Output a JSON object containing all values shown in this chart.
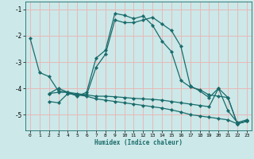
{
  "xlabel": "Humidex (Indice chaleur)",
  "xlim": [
    -0.5,
    23.5
  ],
  "ylim": [
    -5.6,
    -0.7
  ],
  "yticks": [
    -5,
    -4,
    -3,
    -2,
    -1
  ],
  "xticks": [
    0,
    1,
    2,
    3,
    4,
    5,
    6,
    7,
    8,
    9,
    10,
    11,
    12,
    13,
    14,
    15,
    16,
    17,
    18,
    19,
    20,
    21,
    22,
    23
  ],
  "bg_color": "#cce8e8",
  "line_color": "#1a6b6b",
  "grid_color": "#e8b8b8",
  "series": [
    {
      "x": [
        0,
        1,
        2,
        3,
        4,
        5,
        6,
        7,
        8,
        9,
        10,
        11,
        12,
        13,
        14,
        15,
        16,
        17,
        18,
        19,
        20,
        21,
        22,
        23
      ],
      "y": [
        -2.1,
        -3.4,
        -3.55,
        -4.1,
        -4.15,
        -4.3,
        -4.15,
        -2.85,
        -2.55,
        -1.15,
        -1.22,
        -1.35,
        -1.25,
        -1.6,
        -2.2,
        -2.6,
        -3.7,
        -3.95,
        -4.05,
        -4.25,
        -4.3,
        -4.35,
        -5.35,
        -5.25
      ]
    },
    {
      "x": [
        2,
        3,
        4,
        5,
        6,
        7,
        8,
        9,
        10,
        11,
        12,
        13,
        14,
        15,
        16,
        17,
        18,
        19,
        20,
        21,
        22,
        23
      ],
      "y": [
        -4.2,
        -4.0,
        -4.15,
        -4.25,
        -4.25,
        -3.2,
        -2.7,
        -1.4,
        -1.5,
        -1.5,
        -1.4,
        -1.3,
        -1.55,
        -1.8,
        -2.4,
        -3.9,
        -4.1,
        -4.35,
        -4.0,
        -4.35,
        -5.35,
        -5.25
      ]
    },
    {
      "x": [
        2,
        3,
        4,
        5,
        6,
        7,
        8,
        9,
        10,
        11,
        12,
        13,
        14,
        15,
        16,
        17,
        18,
        19,
        20,
        21,
        22,
        23
      ],
      "y": [
        -4.2,
        -4.15,
        -4.15,
        -4.2,
        -4.25,
        -4.3,
        -4.3,
        -4.32,
        -4.35,
        -4.38,
        -4.4,
        -4.42,
        -4.45,
        -4.5,
        -4.55,
        -4.6,
        -4.65,
        -4.7,
        -4.0,
        -4.85,
        -5.3,
        -5.2
      ]
    },
    {
      "x": [
        2,
        3,
        4,
        5,
        6,
        7,
        8,
        9,
        10,
        11,
        12,
        13,
        14,
        15,
        16,
        17,
        18,
        19,
        20,
        21,
        22,
        23
      ],
      "y": [
        -4.5,
        -4.55,
        -4.2,
        -4.25,
        -4.3,
        -4.4,
        -4.45,
        -4.5,
        -4.55,
        -4.6,
        -4.65,
        -4.7,
        -4.75,
        -4.82,
        -4.9,
        -5.0,
        -5.05,
        -5.1,
        -5.15,
        -5.2,
        -5.35,
        -5.25
      ]
    }
  ]
}
